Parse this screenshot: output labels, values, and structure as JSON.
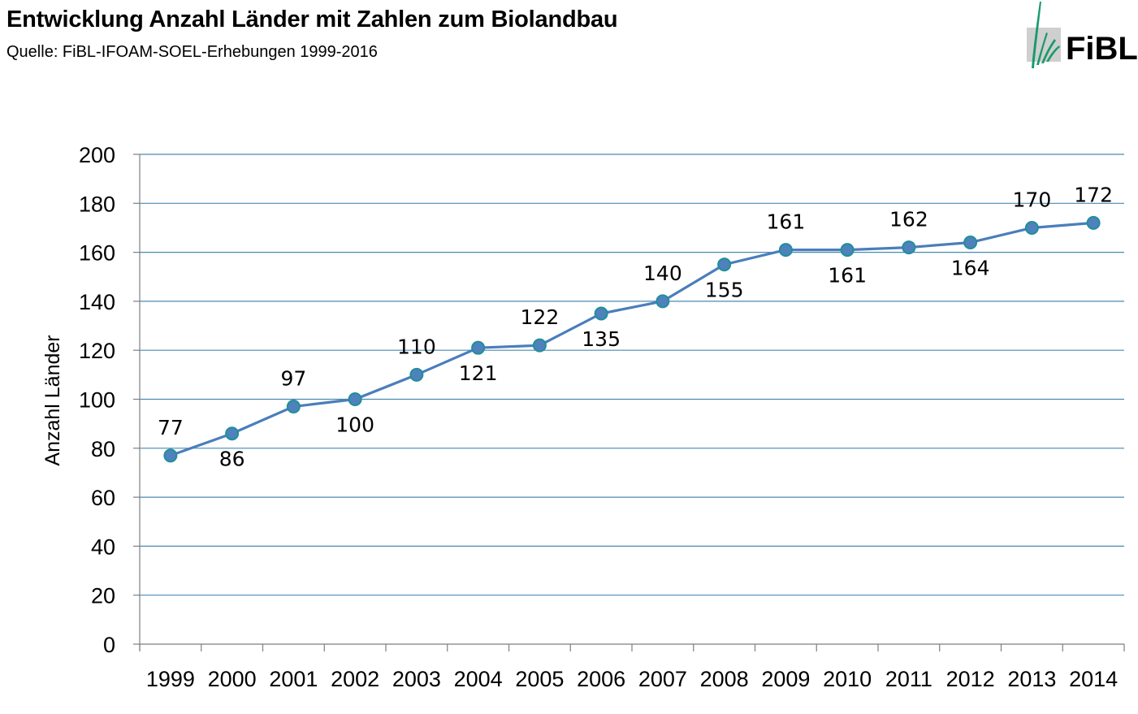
{
  "header": {
    "title": "Entwicklung Anzahl Länder mit Zahlen zum Biolandbau",
    "subtitle": "Quelle: FiBL-IFOAM-SOEL-Erhebungen 1999-2016"
  },
  "logo": {
    "text": "FiBL",
    "icon": "fibl-logo-mark",
    "color": "#1a9a6c"
  },
  "colors": {
    "line": "#4a7ebb",
    "marker": "#4f81bd",
    "marker_edge": "#1f8f9a",
    "grid": "#4a8ab0",
    "axis": "#7f7f7f"
  },
  "chart_data": {
    "type": "line",
    "title": "",
    "xlabel": "",
    "ylabel": "Anzahl Länder",
    "ylim": [
      0,
      200
    ],
    "yticks": [
      0,
      20,
      40,
      60,
      80,
      100,
      120,
      140,
      160,
      180,
      200
    ],
    "grid": true,
    "categories": [
      "1999",
      "2000",
      "2001",
      "2002",
      "2003",
      "2004",
      "2005",
      "2006",
      "2007",
      "2008",
      "2009",
      "2010",
      "2011",
      "2012",
      "2013",
      "2014"
    ],
    "series": [
      {
        "values": [
          77,
          86,
          97,
          100,
          110,
          121,
          122,
          135,
          140,
          155,
          161,
          161,
          162,
          164,
          170,
          172
        ]
      }
    ],
    "data_label_positions": [
      "above",
      "below",
      "above",
      "below",
      "above",
      "below",
      "above",
      "below",
      "above",
      "below",
      "above",
      "below",
      "above",
      "below",
      "above",
      "above"
    ]
  }
}
